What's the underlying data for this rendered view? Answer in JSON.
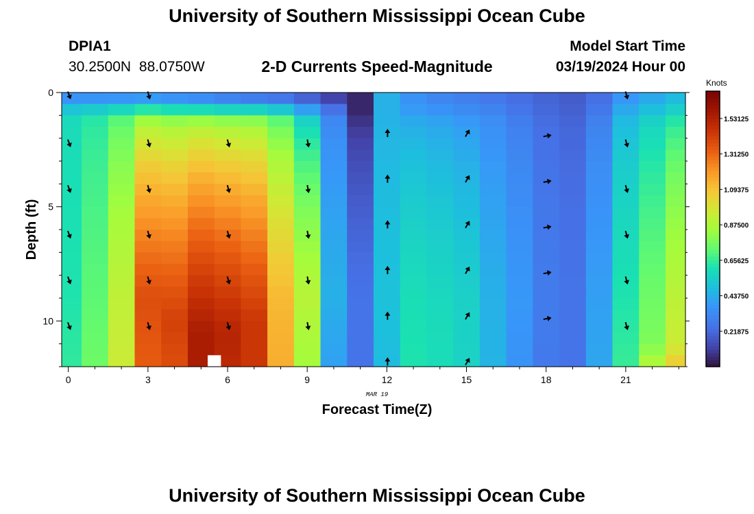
{
  "page": {
    "title_top": "University of Southern Mississippi Ocean Cube",
    "title_bottom": "University of Southern Mississippi Ocean Cube",
    "station_id": "DPIA1",
    "station_coords": "30.2500N  88.0750W",
    "start_label": "Model Start Time",
    "start_value": "03/19/2024 Hour 00"
  },
  "chart_data": {
    "type": "heatmap",
    "title": "2-D Currents Speed-Magnitude",
    "xlabel": "Forecast Time(Z)",
    "ylabel": "Depth (ft)",
    "x_date_label": "MAR 19",
    "x_range": [
      0,
      23
    ],
    "y_range": [
      0,
      12
    ],
    "x_ticks": [
      0,
      3,
      6,
      9,
      12,
      15,
      18,
      21
    ],
    "y_ticks": [
      0,
      5,
      10
    ],
    "colorbar": {
      "title": "Knots",
      "min": 0,
      "max": 1.7,
      "tick_values": [
        0.21875,
        0.4375,
        0.65625,
        0.875,
        1.09375,
        1.3125,
        1.53125
      ],
      "tick_labels": [
        "0.21875",
        "0.43750",
        "0.65625",
        "0.87500",
        "1.09375",
        "1.31250",
        "1.53125"
      ]
    },
    "hours": [
      0,
      1,
      2,
      3,
      4,
      5,
      6,
      7,
      8,
      9,
      10,
      11,
      12,
      13,
      14,
      15,
      16,
      17,
      18,
      19,
      20,
      21,
      22,
      23
    ],
    "profiles": [
      {
        "hour": 0,
        "surface": 0.3,
        "top": 0.58,
        "peak": 0.62,
        "bottom": 0.65,
        "zpeak": 9
      },
      {
        "hour": 1,
        "surface": 0.28,
        "top": 0.62,
        "peak": 0.72,
        "bottom": 0.75,
        "zpeak": 9
      },
      {
        "hour": 2,
        "surface": 0.27,
        "top": 0.68,
        "peak": 0.92,
        "bottom": 0.95,
        "zpeak": 9
      },
      {
        "hour": 3,
        "surface": 0.27,
        "top": 0.75,
        "peak": 1.38,
        "bottom": 1.34,
        "zpeak": 9
      },
      {
        "hour": 4,
        "surface": 0.25,
        "top": 0.72,
        "peak": 1.42,
        "bottom": 1.38,
        "zpeak": 10
      },
      {
        "hour": 5,
        "surface": 0.22,
        "top": 0.72,
        "peak": 1.55,
        "bottom": 1.55,
        "zpeak": 10.5
      },
      {
        "hour": 6,
        "surface": 0.18,
        "top": 0.7,
        "peak": 1.52,
        "bottom": 1.5,
        "zpeak": 10.5
      },
      {
        "hour": 7,
        "surface": 0.15,
        "top": 0.7,
        "peak": 1.45,
        "bottom": 1.45,
        "zpeak": 10
      },
      {
        "hour": 8,
        "surface": 0.13,
        "top": 0.65,
        "peak": 1.12,
        "bottom": 1.15,
        "zpeak": 9
      },
      {
        "hour": 9,
        "surface": 0.1,
        "top": 0.5,
        "peak": 0.9,
        "bottom": 0.85,
        "zpeak": 9
      },
      {
        "hour": 10,
        "surface": 0.06,
        "top": 0.3,
        "peak": 0.45,
        "bottom": 0.4,
        "zpeak": 9
      },
      {
        "hour": 11,
        "surface": 0.05,
        "top": 0.05,
        "peak": 0.25,
        "bottom": 0.25,
        "zpeak": 9
      },
      {
        "hour": 12,
        "surface": 0.45,
        "top": 0.45,
        "peak": 0.5,
        "bottom": 0.48,
        "zpeak": 9
      },
      {
        "hour": 13,
        "surface": 0.35,
        "top": 0.4,
        "peak": 0.6,
        "bottom": 0.62,
        "zpeak": 9
      },
      {
        "hour": 14,
        "surface": 0.3,
        "top": 0.38,
        "peak": 0.58,
        "bottom": 0.6,
        "zpeak": 9
      },
      {
        "hour": 15,
        "surface": 0.28,
        "top": 0.35,
        "peak": 0.55,
        "bottom": 0.56,
        "zpeak": 9
      },
      {
        "hour": 16,
        "surface": 0.25,
        "top": 0.32,
        "peak": 0.45,
        "bottom": 0.46,
        "zpeak": 9
      },
      {
        "hour": 17,
        "surface": 0.22,
        "top": 0.27,
        "peak": 0.38,
        "bottom": 0.36,
        "zpeak": 9
      },
      {
        "hour": 18,
        "surface": 0.2,
        "top": 0.22,
        "peak": 0.28,
        "bottom": 0.27,
        "zpeak": 9
      },
      {
        "hour": 19,
        "surface": 0.18,
        "top": 0.2,
        "peak": 0.25,
        "bottom": 0.25,
        "zpeak": 9
      },
      {
        "hour": 20,
        "surface": 0.22,
        "top": 0.28,
        "peak": 0.4,
        "bottom": 0.42,
        "zpeak": 9
      },
      {
        "hour": 21,
        "surface": 0.35,
        "top": 0.45,
        "peak": 0.62,
        "bottom": 0.66,
        "zpeak": 9
      },
      {
        "hour": 22,
        "surface": 0.4,
        "top": 0.52,
        "peak": 0.78,
        "bottom": 0.9,
        "zpeak": 11
      },
      {
        "hour": 23,
        "surface": 0.45,
        "top": 0.58,
        "peak": 0.95,
        "bottom": 1.08,
        "zpeak": 11
      }
    ],
    "vectors": [
      {
        "hour": 0,
        "depths": [
          0.1,
          2.2,
          4.2,
          6.2,
          8.2,
          10.2
        ],
        "angle": 160
      },
      {
        "hour": 3,
        "depths": [
          0.1,
          2.2,
          4.2,
          6.2,
          8.2,
          10.2
        ],
        "angle": 165
      },
      {
        "hour": 6,
        "depths": [
          2.2,
          4.2,
          6.2,
          8.2,
          10.2
        ],
        "angle": 165
      },
      {
        "hour": 9,
        "depths": [
          2.2,
          4.2,
          6.2,
          8.2,
          10.2
        ],
        "angle": 170
      },
      {
        "hour": 12,
        "depths": [
          1.8,
          3.8,
          5.8,
          7.8,
          9.8,
          11.8
        ],
        "angle": 0
      },
      {
        "hour": 15,
        "depths": [
          1.8,
          3.8,
          5.8,
          7.8,
          9.8,
          11.8
        ],
        "angle": 30
      },
      {
        "hour": 18,
        "depths": [
          1.9,
          3.9,
          5.9,
          7.9,
          9.9
        ],
        "angle": 80
      },
      {
        "hour": 21,
        "depths": [
          0.1,
          2.2,
          4.2,
          6.2,
          8.2,
          10.2
        ],
        "angle": 165
      }
    ],
    "missing_cell": {
      "hour_start": 5.25,
      "hour_end": 5.75,
      "depth_start": 11.5,
      "depth_end": 12
    }
  }
}
